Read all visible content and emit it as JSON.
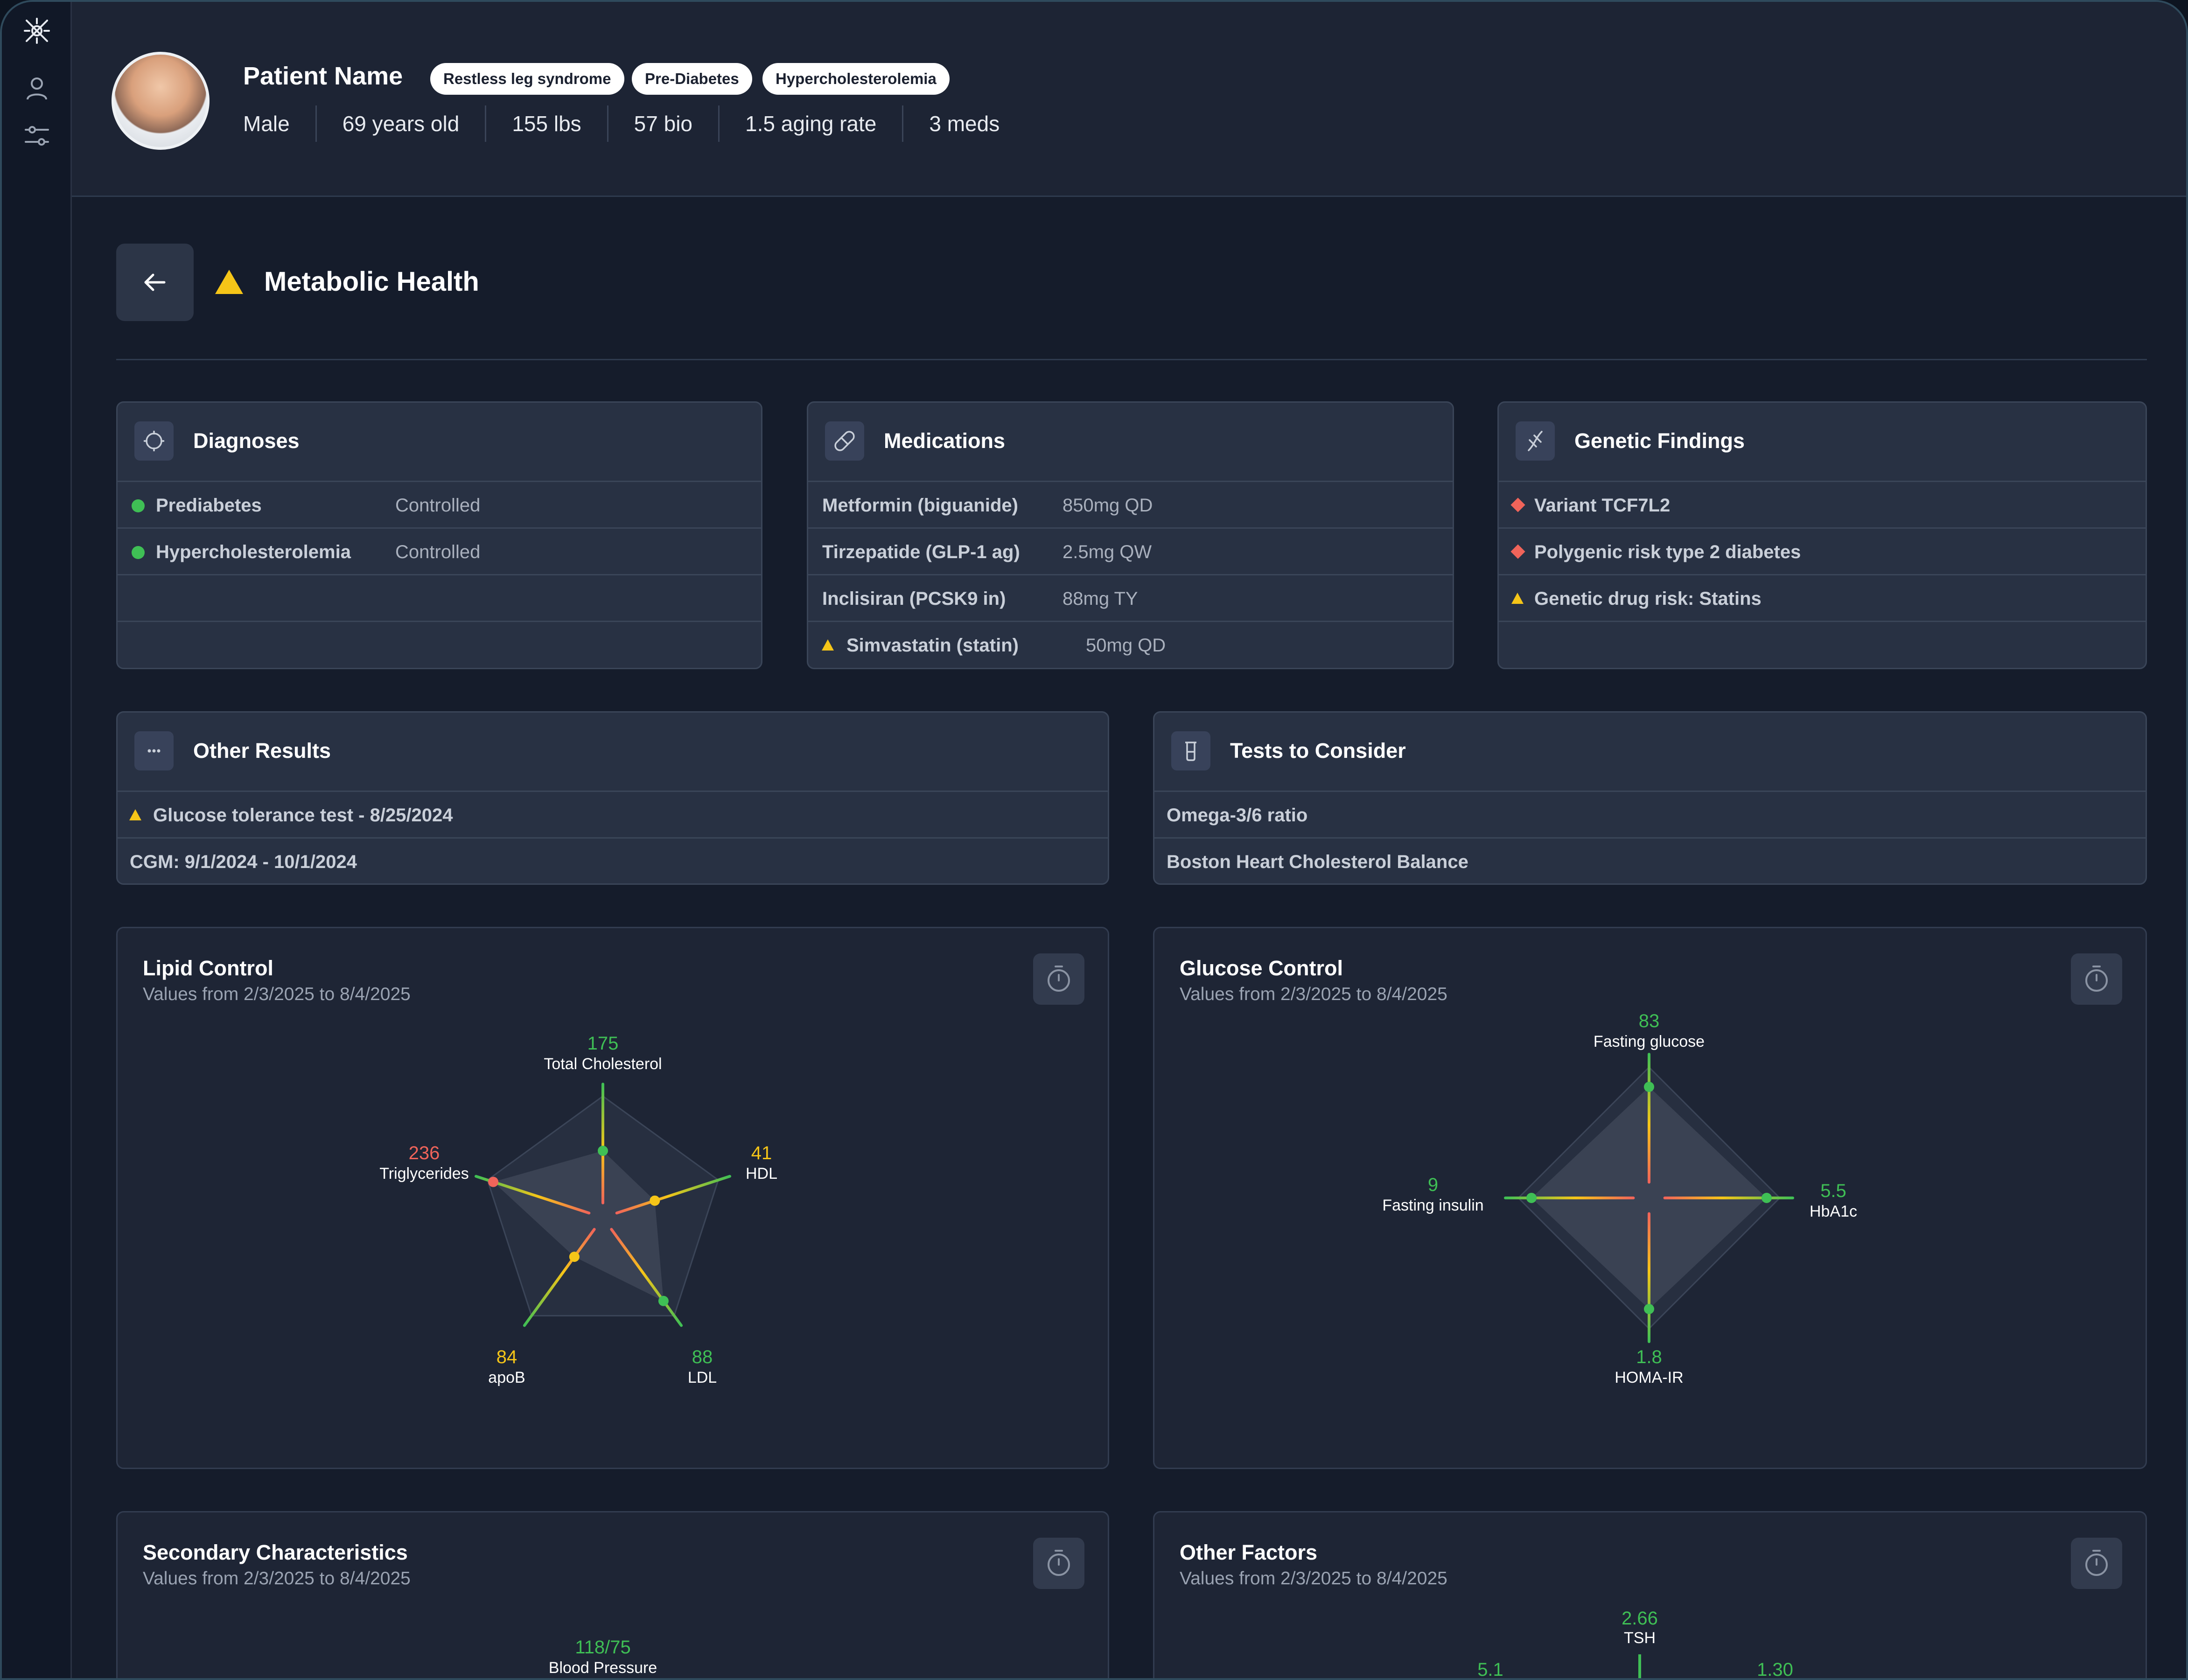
{
  "colors": {
    "green": "#3fbf55",
    "yellow": "#f5c518",
    "orange": "#f08a3c",
    "red": "#f0645a",
    "bg": "#151c2b"
  },
  "sidebar": {
    "icons": [
      "logo-icon",
      "user-icon",
      "sliders-icon"
    ]
  },
  "patient": {
    "name": "Patient Name",
    "tags": [
      "Restless leg syndrome",
      "Pre-Diabetes",
      "Hypercholesterolemia"
    ],
    "stats": [
      "Male",
      "69 years old",
      "155 lbs",
      "57 bio",
      "1.5 aging rate",
      "3 meds"
    ]
  },
  "section": {
    "title": "Metabolic Health",
    "status_icon": "warning-icon"
  },
  "diagnoses": {
    "title": "Diagnoses",
    "items": [
      {
        "name": "Prediabetes",
        "status": "Controlled"
      },
      {
        "name": "Hypercholesterolemia",
        "status": "Controlled"
      }
    ]
  },
  "medications": {
    "title": "Medications",
    "items": [
      {
        "name": "Metformin (biguanide)",
        "dose": "850mg QD"
      },
      {
        "name": "Tirzepatide (GLP-1 ag)",
        "dose": "2.5mg QW"
      },
      {
        "name": "Inclisiran (PCSK9 in)",
        "dose": "88mg TY"
      },
      {
        "name": "Simvastatin (statin)",
        "dose": "50mg QD",
        "warning": true
      }
    ]
  },
  "genetics": {
    "title": "Genetic Findings",
    "items": [
      {
        "name": "Variant TCF7L2",
        "marker": "diamond"
      },
      {
        "name": "Polygenic risk type 2 diabetes",
        "marker": "diamond"
      },
      {
        "name": "Genetic drug risk: Statins",
        "marker": "triangle"
      }
    ]
  },
  "other_results": {
    "title": "Other Results",
    "items": [
      {
        "name": "Glucose tolerance test - 8/25/2024",
        "warning": true
      },
      {
        "name": "CGM: 9/1/2024 - 10/1/2024"
      }
    ]
  },
  "tests": {
    "title": "Tests to Consider",
    "items": [
      "Omega-3/6 ratio",
      "Boston Heart Cholesterol Balance"
    ]
  },
  "chart_data": [
    {
      "type": "radar",
      "title": "Lipid Control",
      "subtitle": "Values from 2/3/2025 to 8/4/2025",
      "axes": [
        {
          "label": "Total Cholesterol",
          "value": "175",
          "level": 0.55,
          "status": "green"
        },
        {
          "label": "HDL",
          "value": "41",
          "level": 0.45,
          "status": "yellow"
        },
        {
          "label": "LDL",
          "value": "88",
          "level": 0.85,
          "status": "green"
        },
        {
          "label": "apoB",
          "value": "84",
          "level": 0.4,
          "status": "yellow"
        },
        {
          "label": "Triglycerides",
          "value": "236",
          "level": 0.95,
          "status": "red"
        }
      ]
    },
    {
      "type": "radar",
      "title": "Glucose Control",
      "subtitle": "Values from 2/3/2025 to 8/4/2025",
      "axes": [
        {
          "label": "Fasting glucose",
          "value": "83",
          "level": 0.85,
          "status": "green"
        },
        {
          "label": "HbA1c",
          "value": "5.5",
          "level": 0.9,
          "status": "green"
        },
        {
          "label": "HOMA-IR",
          "value": "1.8",
          "level": 0.85,
          "status": "green"
        },
        {
          "label": "Fasting insulin",
          "value": "9",
          "level": 0.9,
          "status": "green"
        }
      ]
    },
    {
      "type": "radar",
      "title": "Secondary Characteristics",
      "subtitle": "Values from 2/3/2025 to 8/4/2025",
      "axes": [
        {
          "label": "Blood Pressure",
          "value": "118/75",
          "status": "green"
        }
      ]
    },
    {
      "type": "radar",
      "title": "Other Factors",
      "subtitle": "Values from 2/3/2025 to 8/4/2025",
      "axes": [
        {
          "label": "TSH",
          "value": "2.66",
          "status": "green"
        },
        {
          "value": "1.30",
          "status": "green"
        },
        {
          "value": "5.1",
          "status": "green"
        }
      ]
    }
  ]
}
